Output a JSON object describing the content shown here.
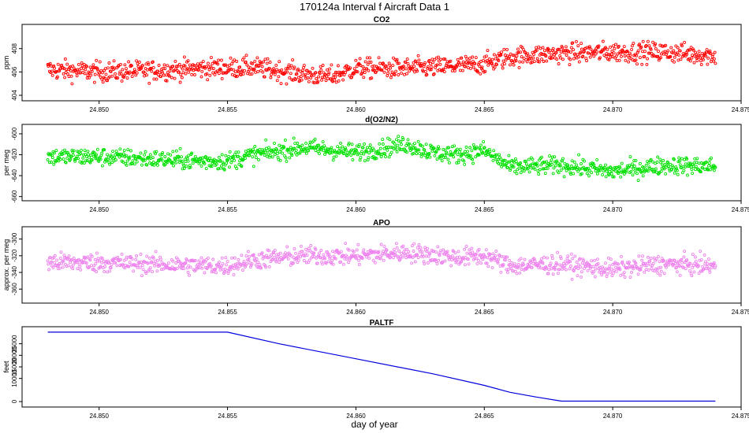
{
  "title": "170124a   Interval f Aircraft Data 1",
  "chart_data": {
    "xlabel": "day of year",
    "xlim": [
      24.847,
      24.875
    ],
    "xticks": [
      24.85,
      24.855,
      24.86,
      24.865,
      24.87,
      24.875
    ],
    "xtick_labels": [
      "24.850",
      "24.855",
      "24.860",
      "24.865",
      "24.870",
      "24.875"
    ],
    "x_start": 24.848,
    "x_end": 24.874,
    "panels": [
      {
        "key": "co2",
        "type": "scatter",
        "title": "CO2",
        "ylabel": "ppm",
        "color": "#ff0000",
        "ylim": [
          403.8,
          409.8
        ],
        "yticks": [
          404,
          406,
          408
        ],
        "ytick_labels": [
          "404",
          "406",
          "408"
        ],
        "trend": [
          [
            24.848,
            406.2
          ],
          [
            24.85,
            406.0
          ],
          [
            24.852,
            406.1
          ],
          [
            24.854,
            406.3
          ],
          [
            24.856,
            406.4
          ],
          [
            24.857,
            406.1
          ],
          [
            24.858,
            405.8
          ],
          [
            24.859,
            405.6
          ],
          [
            24.86,
            406.3
          ],
          [
            24.862,
            406.3
          ],
          [
            24.864,
            406.5
          ],
          [
            24.865,
            406.7
          ],
          [
            24.866,
            407.3
          ],
          [
            24.868,
            407.6
          ],
          [
            24.87,
            407.7
          ],
          [
            24.872,
            407.7
          ],
          [
            24.874,
            407.4
          ]
        ],
        "noise": 0.6,
        "points": 1100
      },
      {
        "key": "o2n2",
        "type": "scatter",
        "title": "d(O2/N2)",
        "ylabel": "per meg",
        "color": "#00e000",
        "ylim": [
          -661,
          -594
        ],
        "yticks": [
          -660,
          -640,
          -620,
          -600
        ],
        "ytick_labels": [
          "-660",
          "-640",
          "-620",
          "-600"
        ],
        "trend": [
          [
            24.848,
            -622
          ],
          [
            24.85,
            -622
          ],
          [
            24.852,
            -624
          ],
          [
            24.854,
            -626
          ],
          [
            24.855,
            -626
          ],
          [
            24.856,
            -620
          ],
          [
            24.858,
            -613
          ],
          [
            24.86,
            -618
          ],
          [
            24.861,
            -614
          ],
          [
            24.862,
            -610
          ],
          [
            24.863,
            -618
          ],
          [
            24.864,
            -620
          ],
          [
            24.865,
            -616
          ],
          [
            24.866,
            -632
          ],
          [
            24.868,
            -630
          ],
          [
            24.87,
            -636
          ],
          [
            24.872,
            -630
          ],
          [
            24.874,
            -631
          ]
        ],
        "noise": 6,
        "points": 1100
      },
      {
        "key": "apo",
        "type": "scatter",
        "title": "APO",
        "ylabel": "approx. per meg",
        "color": "#ee82ee",
        "ylim": [
          -373,
          -289
        ],
        "yticks": [
          -360,
          -340,
          -320,
          -300
        ],
        "ytick_labels": [
          "-360",
          "-340",
          "-320",
          "-300"
        ],
        "trend": [
          [
            24.848,
            -328
          ],
          [
            24.85,
            -328
          ],
          [
            24.852,
            -330
          ],
          [
            24.854,
            -332
          ],
          [
            24.855,
            -332
          ],
          [
            24.856,
            -325
          ],
          [
            24.858,
            -320
          ],
          [
            24.86,
            -320
          ],
          [
            24.862,
            -316
          ],
          [
            24.864,
            -322
          ],
          [
            24.865,
            -320
          ],
          [
            24.866,
            -332
          ],
          [
            24.868,
            -330
          ],
          [
            24.87,
            -336
          ],
          [
            24.872,
            -330
          ],
          [
            24.874,
            -332
          ]
        ],
        "noise": 8,
        "points": 1100
      },
      {
        "key": "paltf",
        "type": "line",
        "title": "PALTF",
        "ylabel": "feet",
        "color": "#0000dd",
        "ylim": [
          -1000,
          31000
        ],
        "yticks": [
          0,
          10000,
          15000,
          20000,
          25000
        ],
        "ytick_labels": [
          "0",
          "10000",
          "15000",
          "20000",
          "25000"
        ],
        "line": [
          [
            24.848,
            30000
          ],
          [
            24.855,
            30000
          ],
          [
            24.857,
            25000
          ],
          [
            24.86,
            18500
          ],
          [
            24.863,
            12000
          ],
          [
            24.865,
            7000
          ],
          [
            24.866,
            4000
          ],
          [
            24.867,
            2000
          ],
          [
            24.868,
            200
          ],
          [
            24.874,
            200
          ]
        ]
      }
    ]
  }
}
